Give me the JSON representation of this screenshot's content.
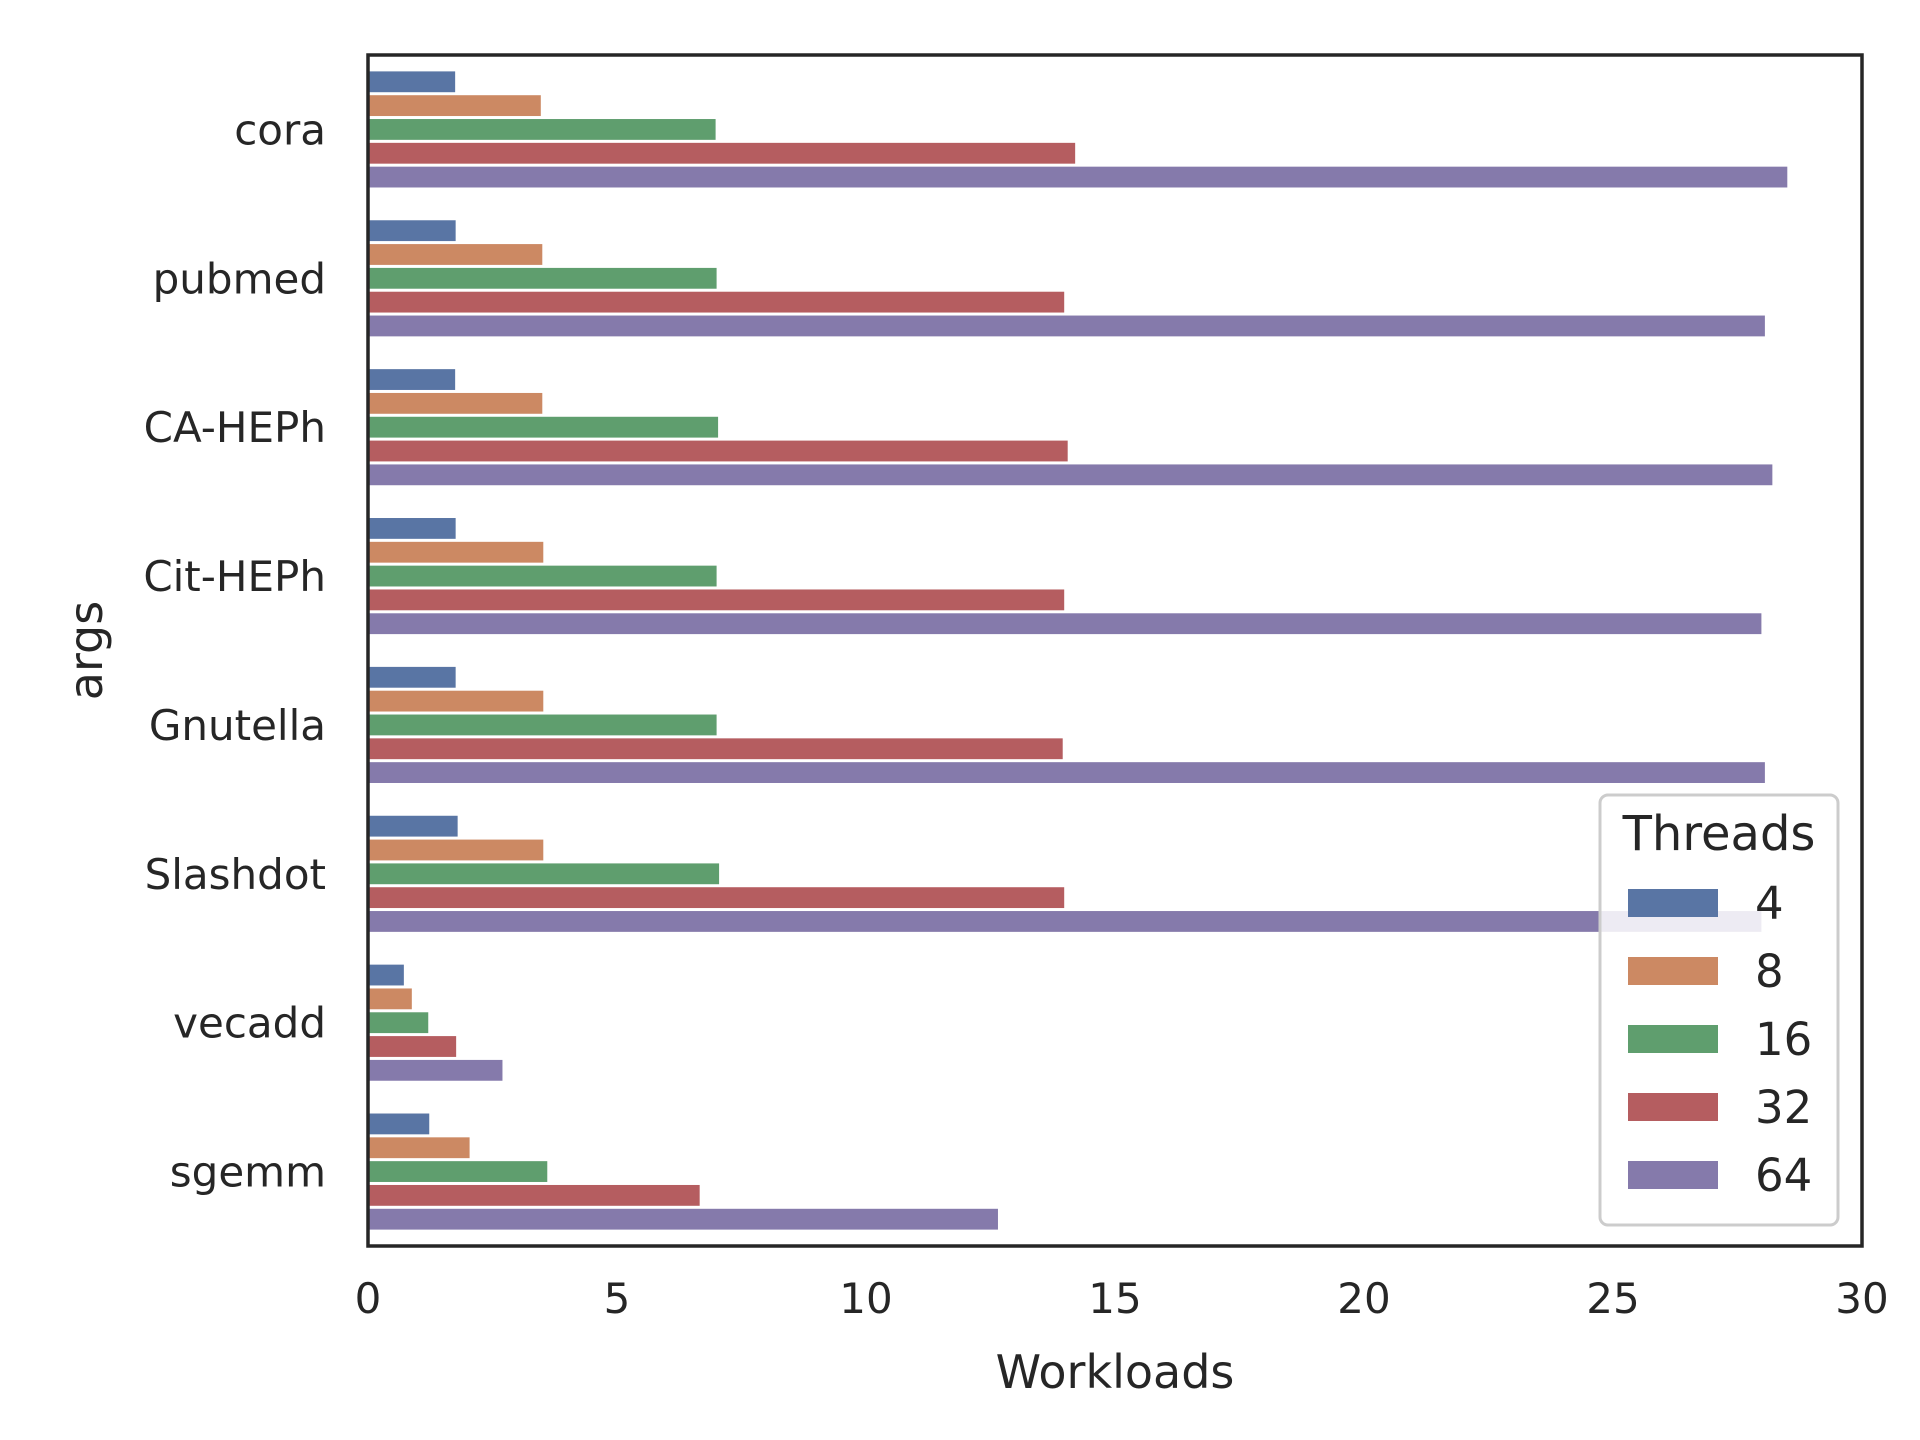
{
  "chart_data": {
    "type": "bar",
    "orientation": "horizontal",
    "xlabel": "Workloads",
    "ylabel": "args",
    "xlim": [
      0,
      30
    ],
    "xticks": [
      0,
      5,
      10,
      15,
      20,
      25,
      30
    ],
    "grid": false,
    "legend": {
      "title": "Threads",
      "placement": "lower-right"
    },
    "categories": [
      "cora",
      "pubmed",
      "CA-HEPh",
      "Cit-HEPh",
      "Gnutella",
      "Slashdot",
      "vecadd",
      "sgemm"
    ],
    "series": [
      {
        "name": "4",
        "color": "#5975a4",
        "values": [
          1.75,
          1.76,
          1.75,
          1.76,
          1.76,
          1.8,
          0.72,
          1.23
        ]
      },
      {
        "name": "8",
        "color": "#cc8963",
        "values": [
          3.47,
          3.5,
          3.5,
          3.52,
          3.52,
          3.52,
          0.88,
          2.04
        ]
      },
      {
        "name": "16",
        "color": "#5f9e6e",
        "values": [
          6.98,
          7.0,
          7.03,
          7.0,
          7.0,
          7.05,
          1.21,
          3.6
        ]
      },
      {
        "name": "32",
        "color": "#b55d60",
        "values": [
          14.2,
          13.98,
          14.05,
          13.98,
          13.95,
          13.98,
          1.77,
          6.66
        ]
      },
      {
        "name": "64",
        "color": "#857aab",
        "values": [
          28.5,
          28.05,
          28.2,
          27.98,
          28.05,
          27.98,
          2.7,
          12.65
        ]
      }
    ]
  }
}
